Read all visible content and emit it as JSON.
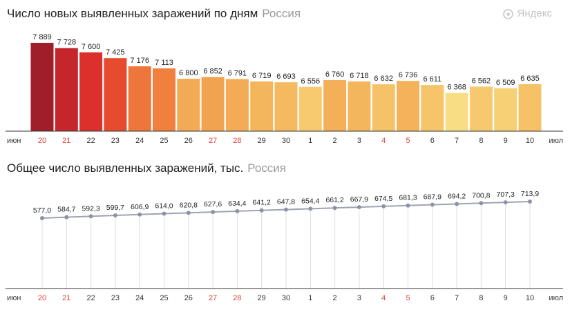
{
  "brand": {
    "label": "Яндекс",
    "icon": "yandex-logo-icon"
  },
  "colors": {
    "weekend_tick": "#e0433a",
    "weekday_tick": "#333333",
    "line": "#9ea3b3",
    "dot": "#8c93a6",
    "guide": "#dcdcdc",
    "axis": "#333333",
    "bar_scale": [
      "#a01d2a",
      "#d92b2b",
      "#e9512f",
      "#ef7e3c",
      "#f2a04c",
      "#f6c368",
      "#f8dd85"
    ]
  },
  "chart_data": [
    {
      "type": "bar",
      "title": "Число новых выявленных заражений по дням",
      "region": "Россия",
      "axis_start_label": "июн",
      "axis_end_label": "июл",
      "categories": [
        "20",
        "21",
        "22",
        "23",
        "24",
        "25",
        "26",
        "27",
        "28",
        "29",
        "30",
        "1",
        "2",
        "3",
        "4",
        "5",
        "6",
        "7",
        "8",
        "9",
        "10"
      ],
      "weekend": [
        true,
        true,
        false,
        false,
        false,
        false,
        false,
        true,
        true,
        false,
        false,
        false,
        false,
        false,
        true,
        true,
        false,
        false,
        false,
        false,
        false
      ],
      "values": [
        7889,
        7728,
        7600,
        7425,
        7176,
        7113,
        6800,
        6852,
        6791,
        6719,
        6693,
        6556,
        6760,
        6718,
        6632,
        6736,
        6611,
        6368,
        6562,
        6509,
        6635
      ],
      "value_labels": [
        "7 889",
        "7 728",
        "7 600",
        "7 425",
        "7 176",
        "7 113",
        "6 800",
        "6 852",
        "6 791",
        "6 719",
        "6 693",
        "6 556",
        "6 760",
        "6 718",
        "6 632",
        "6 736",
        "6 611",
        "6 368",
        "6 562",
        "6 509",
        "6 635"
      ],
      "ylim": [
        0,
        7889
      ]
    },
    {
      "type": "line",
      "title": "Общее число выявленных заражений, тыс.",
      "region": "Россия",
      "axis_start_label": "июн",
      "axis_end_label": "июл",
      "categories": [
        "20",
        "21",
        "22",
        "23",
        "24",
        "25",
        "26",
        "27",
        "28",
        "29",
        "30",
        "1",
        "2",
        "3",
        "4",
        "5",
        "6",
        "7",
        "8",
        "9",
        "10"
      ],
      "weekend": [
        true,
        true,
        false,
        false,
        false,
        false,
        false,
        true,
        true,
        false,
        false,
        false,
        false,
        false,
        true,
        true,
        false,
        false,
        false,
        false,
        false
      ],
      "values": [
        577.0,
        584.7,
        592.3,
        599.7,
        606.9,
        614.0,
        620.8,
        627.6,
        634.4,
        641.2,
        647.8,
        654.4,
        661.2,
        667.9,
        674.5,
        681.3,
        687.9,
        694.2,
        700.8,
        707.3,
        713.9
      ],
      "value_labels": [
        "577,0",
        "584,7",
        "592,3",
        "599,7",
        "606,9",
        "614,0",
        "620,8",
        "627,6",
        "634,4",
        "641,2",
        "647,8",
        "654,4",
        "661,2",
        "667,9",
        "674,5",
        "681,3",
        "687,9",
        "694,2",
        "700,8",
        "707,3",
        "713,9"
      ],
      "ylim": [
        0,
        730
      ]
    }
  ]
}
